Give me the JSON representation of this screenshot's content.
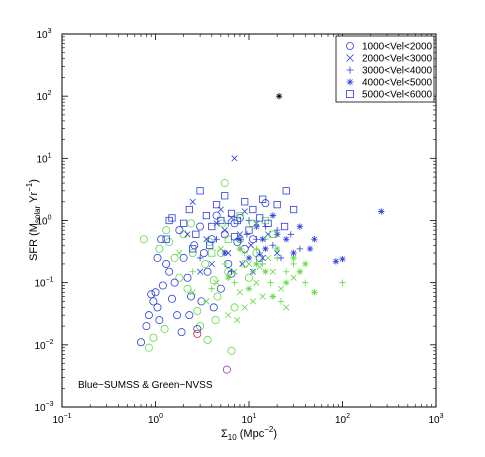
{
  "chart_data": {
    "type": "scatter",
    "title": "",
    "xlabel": {
      "main": "Σ",
      "sub": "10",
      "rest": " (Mpc",
      "sup": "−2",
      "end": ")"
    },
    "ylabel": {
      "main": "SFR (M",
      "sub": "solar",
      "rest": " Yr",
      "sup": "−1",
      "end": ")"
    },
    "xscale": "log",
    "yscale": "log",
    "xlim": [
      0.1,
      1000
    ],
    "ylim": [
      0.001,
      1000
    ],
    "grid": false,
    "legend_position": "top-right",
    "x_ticks": [
      {
        "value": 0.1,
        "base": "10",
        "exp": "−1"
      },
      {
        "value": 1,
        "base": "10",
        "exp": "0"
      },
      {
        "value": 10,
        "base": "10",
        "exp": "1"
      },
      {
        "value": 100,
        "base": "10",
        "exp": "2"
      },
      {
        "value": 1000,
        "base": "10",
        "exp": "3"
      }
    ],
    "y_ticks": [
      {
        "value": 0.001,
        "base": "10",
        "exp": "−3"
      },
      {
        "value": 0.01,
        "base": "10",
        "exp": "−2"
      },
      {
        "value": 0.1,
        "base": "10",
        "exp": "−1"
      },
      {
        "value": 1,
        "base": "10",
        "exp": "0"
      },
      {
        "value": 10,
        "base": "10",
        "exp": "1"
      },
      {
        "value": 100,
        "base": "10",
        "exp": "2"
      },
      {
        "value": 1000,
        "base": "10",
        "exp": "3"
      }
    ],
    "annotation": "Blue−SUMSS & Green−NVSS",
    "colors": {
      "blue": "#2b3fe0",
      "green": "#62d940",
      "red": "#d6203a",
      "purple": "#9a2aa6",
      "black": "#000000"
    },
    "series": [
      {
        "name": "1000<Vel<2000",
        "marker": "circle",
        "blue": [
          [
            0.7,
            0.011
          ],
          [
            0.8,
            0.02
          ],
          [
            0.85,
            0.03
          ],
          [
            0.9,
            0.065
          ],
          [
            0.95,
            0.05
          ],
          [
            1.0,
            0.07
          ],
          [
            1.05,
            0.04
          ],
          [
            1.1,
            0.025
          ],
          [
            1.2,
            0.09
          ],
          [
            1.3,
            0.2
          ],
          [
            1.4,
            0.15
          ],
          [
            1.5,
            0.055
          ],
          [
            1.6,
            0.1
          ],
          [
            1.7,
            0.03
          ],
          [
            1.9,
            0.016
          ],
          [
            2.0,
            0.25
          ],
          [
            2.2,
            0.12
          ],
          [
            2.4,
            0.06
          ],
          [
            2.6,
            0.4
          ],
          [
            2.8,
            0.018
          ],
          [
            3.0,
            0.8
          ],
          [
            3.3,
            0.3
          ],
          [
            3.6,
            0.15
          ],
          [
            4.0,
            0.5
          ],
          [
            4.5,
            1.2
          ],
          [
            5.0,
            0.08
          ],
          [
            5.5,
            0.6
          ],
          [
            6.0,
            0.2
          ],
          [
            7.0,
            0.9
          ],
          [
            8.0,
            1.1
          ],
          [
            9.0,
            0.35
          ],
          [
            11,
            0.5
          ],
          [
            13,
            0.25
          ],
          [
            15,
            1.9
          ],
          [
            1.8,
            0.7
          ],
          [
            2.3,
            0.03
          ],
          [
            3.1,
            0.05
          ],
          [
            4.2,
            0.04
          ],
          [
            1.05,
            0.25
          ],
          [
            1.15,
            0.5
          ],
          [
            6.5,
            0.14
          ],
          [
            7.5,
            0.45
          ]
        ],
        "green": [
          [
            0.75,
            0.5
          ],
          [
            0.85,
            0.009
          ],
          [
            0.95,
            0.013
          ],
          [
            1.1,
            0.35
          ],
          [
            1.25,
            0.018
          ],
          [
            1.4,
            0.45
          ],
          [
            1.6,
            0.25
          ],
          [
            1.8,
            0.12
          ],
          [
            2.0,
            0.6
          ],
          [
            2.2,
            0.08
          ],
          [
            2.5,
            0.3
          ],
          [
            2.8,
            0.035
          ],
          [
            3.0,
            0.02
          ],
          [
            3.4,
            0.2
          ],
          [
            3.8,
            0.45
          ],
          [
            4.2,
            0.11
          ],
          [
            4.6,
            0.06
          ],
          [
            5.0,
            0.3
          ],
          [
            5.5,
            4.0
          ],
          [
            6.0,
            0.15
          ],
          [
            6.5,
            0.008
          ],
          [
            7.0,
            0.04
          ],
          [
            8.0,
            0.5
          ],
          [
            9.0,
            0.2
          ],
          [
            10,
            0.12
          ],
          [
            12,
            0.3
          ],
          [
            2.4,
            0.9
          ],
          [
            1.3,
            0.7
          ],
          [
            5.2,
            0.9
          ],
          [
            3.6,
            0.012
          ],
          [
            4.4,
            0.025
          ]
        ],
        "red": [
          [
            2.8,
            0.015
          ]
        ],
        "purple": [
          [
            5.8,
            0.004
          ]
        ]
      },
      {
        "name": "2000<Vel<3000",
        "marker": "x",
        "blue": [
          [
            2.5,
            2.0
          ],
          [
            3.5,
            0.5
          ],
          [
            4.5,
            0.9
          ],
          [
            5.0,
            1.5
          ],
          [
            6.0,
            0.3
          ],
          [
            7.0,
            10.0
          ],
          [
            8.0,
            0.6
          ],
          [
            9.0,
            1.4
          ],
          [
            10.5,
            0.4
          ],
          [
            12,
            0.9
          ],
          [
            14,
            0.25
          ],
          [
            16,
            0.6
          ],
          [
            20,
            0.3
          ],
          [
            3.0,
            0.15
          ],
          [
            4.0,
            0.2
          ],
          [
            5.5,
            0.7
          ],
          [
            6.5,
            1.1
          ],
          [
            11,
            0.15
          ],
          [
            8.5,
            0.2
          ],
          [
            2.2,
            0.6
          ]
        ],
        "green": [
          [
            1.8,
            0.3
          ],
          [
            2.5,
            0.07
          ],
          [
            3.5,
            0.05
          ],
          [
            4.5,
            0.1
          ],
          [
            6.0,
            0.03
          ],
          [
            7.0,
            0.15
          ],
          [
            8.0,
            0.07
          ],
          [
            9.0,
            0.04
          ],
          [
            10,
            0.2
          ],
          [
            12,
            0.1
          ],
          [
            14,
            0.06
          ],
          [
            18,
            0.15
          ],
          [
            22,
            0.08
          ],
          [
            25,
            0.04
          ],
          [
            30,
            0.12
          ],
          [
            7.5,
            0.025
          ],
          [
            5.0,
            0.35
          ],
          [
            16,
            0.25
          ],
          [
            11,
            0.05
          ],
          [
            13,
            0.18
          ]
        ]
      },
      {
        "name": "3000<Vel<4000",
        "marker": "plus",
        "blue": [
          [
            3.0,
            0.25
          ],
          [
            4.5,
            0.5
          ],
          [
            6.0,
            0.9
          ],
          [
            8.0,
            0.35
          ],
          [
            10,
            1.0
          ],
          [
            12,
            0.5
          ],
          [
            15,
            0.8
          ],
          [
            18,
            0.4
          ],
          [
            22,
            0.25
          ],
          [
            28,
            0.6
          ],
          [
            35,
            0.35
          ],
          [
            6.5,
            0.15
          ],
          [
            9.5,
            0.6
          ],
          [
            13,
            0.3
          ],
          [
            20,
            0.7
          ]
        ],
        "green": [
          [
            2.5,
            0.15
          ],
          [
            4.0,
            0.08
          ],
          [
            5.5,
            0.2
          ],
          [
            7.0,
            0.1
          ],
          [
            9.0,
            0.3
          ],
          [
            11,
            0.15
          ],
          [
            14,
            0.2
          ],
          [
            17,
            0.1
          ],
          [
            20,
            0.25
          ],
          [
            25,
            0.15
          ],
          [
            30,
            0.2
          ],
          [
            35,
            0.15
          ],
          [
            40,
            0.1
          ],
          [
            100,
            0.1
          ],
          [
            15,
            0.5
          ],
          [
            22,
            0.05
          ],
          [
            12,
            0.35
          ]
        ],
        "black": []
      },
      {
        "name": "4000<Vel<5000",
        "marker": "asterisk",
        "blue": [
          [
            5.5,
            0.3
          ],
          [
            8.0,
            0.5
          ],
          [
            10,
            0.25
          ],
          [
            12,
            0.8
          ],
          [
            15,
            0.35
          ],
          [
            18,
            1.2
          ],
          [
            25,
            0.5
          ],
          [
            35,
            0.8
          ],
          [
            50,
            0.5
          ],
          [
            85,
            0.22
          ],
          [
            100,
            0.24
          ],
          [
            260,
            1.4
          ],
          [
            20,
            0.6
          ],
          [
            30,
            0.3
          ],
          [
            45,
            0.35
          ],
          [
            14,
            0.5
          ]
        ],
        "green": [
          [
            6.0,
            0.12
          ],
          [
            8.0,
            0.35
          ],
          [
            10,
            0.08
          ],
          [
            12,
            0.2
          ],
          [
            15,
            0.15
          ],
          [
            20,
            0.35
          ],
          [
            25,
            0.1
          ],
          [
            30,
            0.25
          ],
          [
            40,
            0.2
          ],
          [
            50,
            0.07
          ],
          [
            18,
            0.06
          ],
          [
            35,
            0.15
          ]
        ],
        "black": [
          [
            21,
            100
          ]
        ]
      },
      {
        "name": "5000<Vel<6000",
        "marker": "square",
        "blue": [
          [
            1.3,
            0.5
          ],
          [
            1.5,
            1.1
          ],
          [
            2.0,
            0.9
          ],
          [
            2.3,
            1.5
          ],
          [
            2.7,
            0.6
          ],
          [
            3.0,
            3.0
          ],
          [
            3.5,
            1.2
          ],
          [
            4.0,
            0.8
          ],
          [
            4.5,
            1.8
          ],
          [
            5.0,
            1.0
          ],
          [
            5.5,
            2.5
          ],
          [
            6.5,
            1.3
          ],
          [
            7.5,
            1.0
          ],
          [
            9.0,
            2.0
          ],
          [
            11,
            1.5
          ],
          [
            13,
            1.1
          ],
          [
            16,
            0.9
          ],
          [
            20,
            1.8
          ],
          [
            25,
            3.0
          ],
          [
            30,
            1.5
          ],
          [
            2.5,
            0.35
          ],
          [
            3.8,
            0.4
          ],
          [
            7.0,
            0.55
          ],
          [
            10,
            0.7
          ],
          [
            14,
            2.2
          ],
          [
            1.4,
            1.0
          ],
          [
            24,
            0.8
          ]
        ],
        "green": [
          [
            4.0,
            0.3
          ],
          [
            6.0,
            0.5
          ],
          [
            8.0,
            1.2
          ],
          [
            11,
            0.9
          ],
          [
            15,
            1.0
          ],
          [
            18,
            0.6
          ]
        ]
      }
    ]
  }
}
